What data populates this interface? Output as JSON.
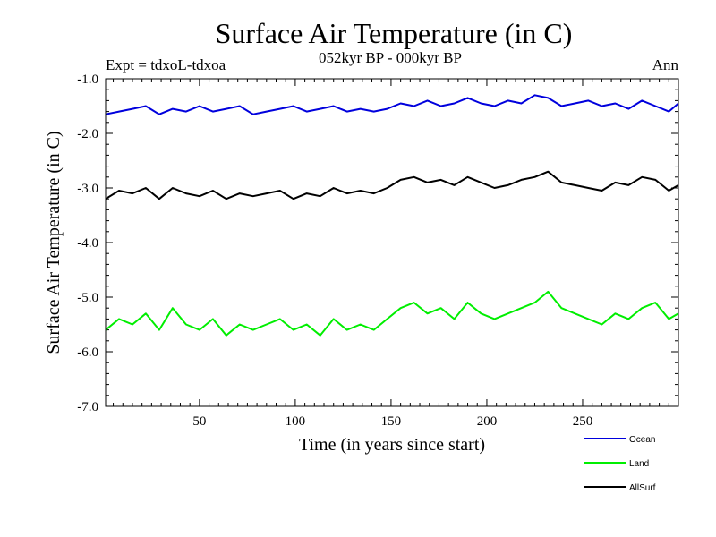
{
  "chart_data": {
    "type": "line",
    "title": "Surface Air Temperature (in C)",
    "subtitle": "052kyr BP - 000kyr BP",
    "experiment_label": "Expt = tdxoL-tdxoa",
    "season_label": "Ann",
    "xlabel": "Time (in years since start)",
    "ylabel": "Surface Air Temperature (in C)",
    "xlim": [
      1,
      300
    ],
    "ylim": [
      -7.0,
      -1.0
    ],
    "x_ticks": [
      50,
      100,
      150,
      200,
      250
    ],
    "x_tick_labels": [
      "50",
      "100",
      "150",
      "200",
      "250"
    ],
    "y_ticks": [
      -1.0,
      -2.0,
      -3.0,
      -4.0,
      -5.0,
      -6.0,
      -7.0
    ],
    "y_tick_labels": [
      "-1.0",
      "-2.0",
      "-3.0",
      "-4.0",
      "-5.0",
      "-6.0",
      "-7.0"
    ],
    "legend_position": "bottom-right, below plot",
    "series": [
      {
        "name": "Ocean",
        "color": "#0000dd",
        "x": [
          1,
          8,
          15,
          22,
          29,
          36,
          43,
          50,
          57,
          64,
          71,
          78,
          85,
          92,
          99,
          106,
          113,
          120,
          127,
          134,
          141,
          148,
          155,
          162,
          169,
          176,
          183,
          190,
          197,
          204,
          211,
          218,
          225,
          232,
          239,
          246,
          253,
          260,
          267,
          274,
          281,
          288,
          295,
          300
        ],
        "values": [
          -1.65,
          -1.6,
          -1.55,
          -1.5,
          -1.65,
          -1.55,
          -1.6,
          -1.5,
          -1.6,
          -1.55,
          -1.5,
          -1.65,
          -1.6,
          -1.55,
          -1.5,
          -1.6,
          -1.55,
          -1.5,
          -1.6,
          -1.55,
          -1.6,
          -1.55,
          -1.45,
          -1.5,
          -1.4,
          -1.5,
          -1.45,
          -1.35,
          -1.45,
          -1.5,
          -1.4,
          -1.45,
          -1.3,
          -1.35,
          -1.5,
          -1.45,
          -1.4,
          -1.5,
          -1.45,
          -1.55,
          -1.4,
          -1.5,
          -1.6,
          -1.45
        ]
      },
      {
        "name": "Land",
        "color": "#00ee00",
        "x": [
          1,
          8,
          15,
          22,
          29,
          36,
          43,
          50,
          57,
          64,
          71,
          78,
          85,
          92,
          99,
          106,
          113,
          120,
          127,
          134,
          141,
          148,
          155,
          162,
          169,
          176,
          183,
          190,
          197,
          204,
          211,
          218,
          225,
          232,
          239,
          246,
          253,
          260,
          267,
          274,
          281,
          288,
          295,
          300
        ],
        "values": [
          -5.6,
          -5.4,
          -5.5,
          -5.3,
          -5.6,
          -5.2,
          -5.5,
          -5.6,
          -5.4,
          -5.7,
          -5.5,
          -5.6,
          -5.5,
          -5.4,
          -5.6,
          -5.5,
          -5.7,
          -5.4,
          -5.6,
          -5.5,
          -5.6,
          -5.4,
          -5.2,
          -5.1,
          -5.3,
          -5.2,
          -5.4,
          -5.1,
          -5.3,
          -5.4,
          -5.3,
          -5.2,
          -5.1,
          -4.9,
          -5.2,
          -5.3,
          -5.4,
          -5.5,
          -5.3,
          -5.4,
          -5.2,
          -5.1,
          -5.4,
          -5.3
        ]
      },
      {
        "name": "AllSurf",
        "color": "#000000",
        "x": [
          1,
          8,
          15,
          22,
          29,
          36,
          43,
          50,
          57,
          64,
          71,
          78,
          85,
          92,
          99,
          106,
          113,
          120,
          127,
          134,
          141,
          148,
          155,
          162,
          169,
          176,
          183,
          190,
          197,
          204,
          211,
          218,
          225,
          232,
          239,
          246,
          253,
          260,
          267,
          274,
          281,
          288,
          295,
          300
        ],
        "values": [
          -3.2,
          -3.05,
          -3.1,
          -3.0,
          -3.2,
          -3.0,
          -3.1,
          -3.15,
          -3.05,
          -3.2,
          -3.1,
          -3.15,
          -3.1,
          -3.05,
          -3.2,
          -3.1,
          -3.15,
          -3.0,
          -3.1,
          -3.05,
          -3.1,
          -3.0,
          -2.85,
          -2.8,
          -2.9,
          -2.85,
          -2.95,
          -2.8,
          -2.9,
          -3.0,
          -2.95,
          -2.85,
          -2.8,
          -2.7,
          -2.9,
          -2.95,
          -3.0,
          -3.05,
          -2.9,
          -2.95,
          -2.8,
          -2.85,
          -3.05,
          -2.95
        ]
      }
    ]
  }
}
